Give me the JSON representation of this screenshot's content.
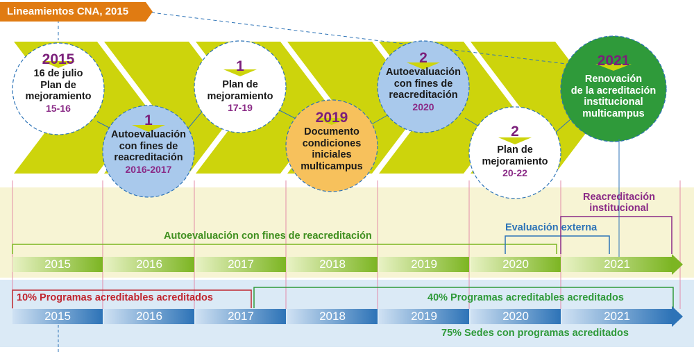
{
  "tag_label": "Lineamientos CNA, 2015",
  "milestones": [
    {
      "year": "2015",
      "lines": [
        "16 de julio",
        "Plan de",
        "mejoramiento"
      ],
      "sub": "15-16"
    },
    {
      "year": "1",
      "lines": [
        "Autoevaluación",
        "con fines de",
        "reacreditación"
      ],
      "sub": "2016-2017"
    },
    {
      "year": "1",
      "lines": [
        "Plan de",
        "mejoramiento"
      ],
      "sub": "17-19"
    },
    {
      "year": "2019",
      "lines": [
        "Documento",
        "condiciones",
        "iniciales",
        "multicampus"
      ],
      "sub": ""
    },
    {
      "year": "2",
      "lines": [
        "Autoevaluación",
        "con fines de",
        "reacreditación"
      ],
      "sub": "2020"
    },
    {
      "year": "2",
      "lines": [
        "Plan de",
        "mejoramiento"
      ],
      "sub": "20-22"
    },
    {
      "year": "2021",
      "lines": [
        "Renovación",
        "de la acreditación",
        "institucional",
        "multicampus"
      ],
      "sub": ""
    }
  ],
  "band_labels": {
    "reacreditacion_institucional": "Reacreditación institucional",
    "evaluacion_externa": "Evaluación externa",
    "autoevaluacion": "Autoevaluación con fines de reacreditación",
    "programas_10": "10% Programas acreditables acreditados",
    "programas_40": "40% Programas acreditables acreditados",
    "sedes_75": "75% Sedes con programas acreditados"
  },
  "timeline_years": [
    "2015",
    "2016",
    "2017",
    "2018",
    "2019",
    "2020",
    "2021"
  ],
  "colors": {
    "tag": "#e07b12",
    "chevron": "#cdd40c",
    "green": "#7cb522",
    "blue": "#2d73b7",
    "red": "#c0262f",
    "purple": "#8a2a86",
    "orange_circle": "#f7c15c",
    "blue_circle": "#a9c9ec",
    "dark_green_circle": "#2f9a3a",
    "yellow_band": "#f7f4d4",
    "blue_band": "#dbeaf6"
  }
}
